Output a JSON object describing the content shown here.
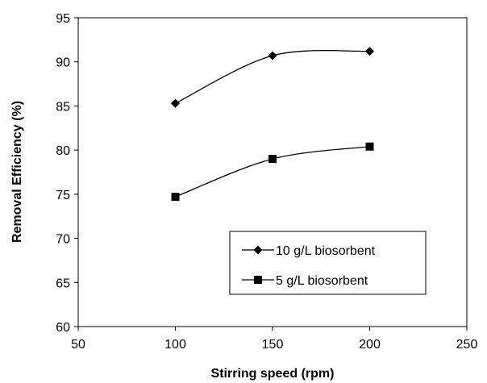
{
  "chart_data": {
    "type": "line",
    "title": "",
    "xlabel": "Stirring speed (rpm)",
    "ylabel": "Removal Efficiency (%)",
    "xlim": [
      50,
      250
    ],
    "ylim": [
      60,
      95
    ],
    "xticks": [
      50,
      100,
      150,
      200,
      250
    ],
    "yticks": [
      60,
      65,
      70,
      75,
      80,
      85,
      90,
      95
    ],
    "grid": false,
    "legend_position": "bottom-right",
    "x": [
      100,
      150,
      200
    ],
    "series": [
      {
        "name": "10 g/L biosorbent",
        "marker": "diamond",
        "color": "#000000",
        "values": [
          85.3,
          90.7,
          91.2
        ]
      },
      {
        "name": "5 g/L biosorbent",
        "marker": "square",
        "color": "#000000",
        "values": [
          74.7,
          79.0,
          80.4
        ]
      }
    ]
  }
}
